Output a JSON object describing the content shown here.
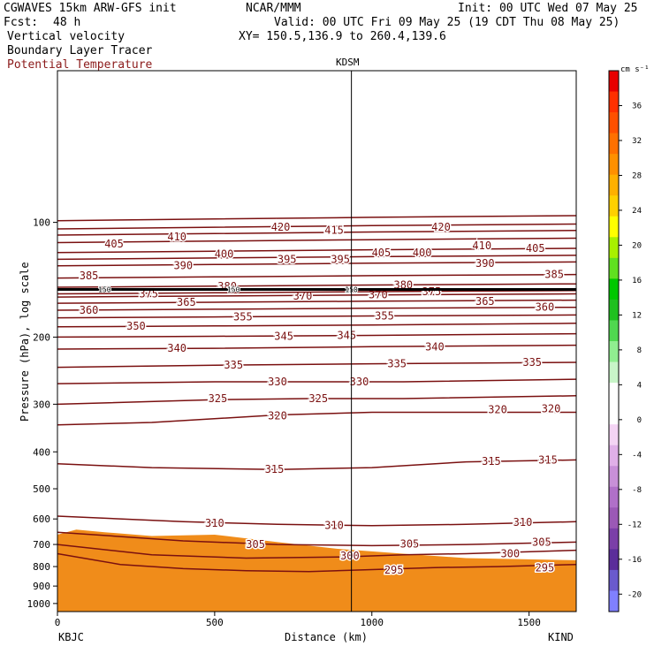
{
  "header": {
    "model": "CGWAVES 15km ARW-GFS init",
    "fcst_label": "Fcst:",
    "fcst_value": "48 h",
    "org": "NCAR/MMM",
    "init": "Init: 00 UTC Wed 07 May 25",
    "valid": "Valid: 00 UTC Fri 09 May 25 (19 CDT Thu 08 May 25)",
    "xy": "XY= 150.5,136.9 to 260.4,139.6",
    "fields": [
      {
        "label": "Vertical velocity",
        "color": "#000000"
      },
      {
        "label": "Boundary Layer Tracer",
        "color": "#000000"
      },
      {
        "label": "Potential Temperature",
        "color": "#8b1a1a"
      }
    ]
  },
  "chart_data": {
    "type": "heatmap",
    "subtype": "vertical cross-section",
    "xlabel": "Distance (km)",
    "ylabel": "Pressure (hPa), log scale",
    "xlim": [
      0,
      1650
    ],
    "ylim": [
      1050,
      40
    ],
    "yscale": "log",
    "x_ticks": [
      0,
      500,
      1000,
      1500
    ],
    "y_ticks": [
      100,
      200,
      300,
      400,
      500,
      600,
      700,
      800,
      900,
      1000
    ],
    "start_station": "KBJC",
    "end_station": "KIND",
    "mid_station": {
      "name": "KDSM",
      "x": 935
    },
    "tropopause_labels": [
      "150"
    ],
    "colorbar": {
      "unit": "cm s⁻¹",
      "ticks": [
        -20,
        -16,
        -12,
        -8,
        -4,
        0,
        4,
        8,
        12,
        16,
        20,
        24,
        28,
        32,
        36
      ],
      "colors": [
        "#8080ff",
        "#6a5acd",
        "#5b2d9a",
        "#7b3fa8",
        "#9b59b6",
        "#b070c8",
        "#c890d8",
        "#e0b0e8",
        "#f4d4f4",
        "#ffffff",
        "#ffffff",
        "#c8f5c8",
        "#90ee90",
        "#50d850",
        "#20c020",
        "#00c800",
        "#60e020",
        "#a8f000",
        "#ffff00",
        "#ffd000",
        "#ffb000",
        "#ff9000",
        "#ff7000",
        "#ff5000",
        "#ff3000",
        "#e80000"
      ]
    },
    "theta_contours": [
      {
        "value": 295,
        "points": [
          [
            0,
            740
          ],
          [
            200,
            790
          ],
          [
            400,
            810
          ],
          [
            600,
            820
          ],
          [
            800,
            825
          ],
          [
            1000,
            815
          ],
          [
            1200,
            805
          ],
          [
            1400,
            800
          ],
          [
            1650,
            790
          ]
        ],
        "labels": [
          [
            1070,
            818
          ],
          [
            1550,
            806
          ]
        ]
      },
      {
        "value": 300,
        "points": [
          [
            0,
            700
          ],
          [
            300,
            745
          ],
          [
            600,
            760
          ],
          [
            900,
            755
          ],
          [
            1100,
            745
          ],
          [
            1300,
            740
          ],
          [
            1650,
            725
          ]
        ],
        "labels": [
          [
            930,
            750
          ],
          [
            1440,
            740
          ]
        ]
      },
      {
        "value": 305,
        "points": [
          [
            0,
            650
          ],
          [
            400,
            685
          ],
          [
            700,
            700
          ],
          [
            1000,
            705
          ],
          [
            1300,
            700
          ],
          [
            1650,
            690
          ]
        ],
        "labels": [
          [
            630,
            700
          ],
          [
            1120,
            698
          ],
          [
            1540,
            690
          ]
        ]
      },
      {
        "value": 310,
        "points": [
          [
            0,
            590
          ],
          [
            400,
            610
          ],
          [
            700,
            620
          ],
          [
            1000,
            625
          ],
          [
            1300,
            620
          ],
          [
            1650,
            610
          ]
        ],
        "labels": [
          [
            500,
            615
          ],
          [
            880,
            624
          ],
          [
            1480,
            612
          ]
        ]
      },
      {
        "value": 315,
        "points": [
          [
            0,
            430
          ],
          [
            300,
            440
          ],
          [
            700,
            445
          ],
          [
            1000,
            440
          ],
          [
            1300,
            425
          ],
          [
            1650,
            420
          ]
        ],
        "labels": [
          [
            690,
            444
          ],
          [
            1380,
            424
          ],
          [
            1560,
            420
          ]
        ]
      },
      {
        "value": 320,
        "points": [
          [
            0,
            340
          ],
          [
            300,
            335
          ],
          [
            700,
            320
          ],
          [
            1000,
            315
          ],
          [
            1300,
            315
          ],
          [
            1650,
            315
          ]
        ],
        "labels": [
          [
            700,
            322
          ],
          [
            1400,
            310
          ],
          [
            1570,
            308
          ]
        ]
      },
      {
        "value": 325,
        "points": [
          [
            0,
            300
          ],
          [
            500,
            292
          ],
          [
            800,
            290
          ],
          [
            1100,
            290
          ],
          [
            1650,
            285
          ]
        ],
        "labels": [
          [
            510,
            290
          ],
          [
            830,
            290
          ]
        ]
      },
      {
        "value": 330,
        "points": [
          [
            0,
            265
          ],
          [
            500,
            262
          ],
          [
            800,
            262
          ],
          [
            1100,
            262
          ],
          [
            1650,
            258
          ]
        ],
        "labels": [
          [
            700,
            262
          ],
          [
            960,
            262
          ]
        ]
      },
      {
        "value": 335,
        "points": [
          [
            0,
            240
          ],
          [
            500,
            237
          ],
          [
            1000,
            235
          ],
          [
            1650,
            233
          ]
        ],
        "labels": [
          [
            560,
            237
          ],
          [
            1080,
            235
          ],
          [
            1510,
            233
          ]
        ]
      },
      {
        "value": 340,
        "points": [
          [
            0,
            215
          ],
          [
            500,
            214
          ],
          [
            1000,
            212
          ],
          [
            1650,
            210
          ]
        ],
        "labels": [
          [
            380,
            214
          ],
          [
            1200,
            212
          ]
        ]
      },
      {
        "value": 345,
        "points": [
          [
            0,
            200
          ],
          [
            500,
            199
          ],
          [
            1000,
            198
          ],
          [
            1650,
            196
          ]
        ],
        "labels": [
          [
            720,
            199
          ],
          [
            920,
            198
          ]
        ]
      },
      {
        "value": 350,
        "points": [
          [
            0,
            188
          ],
          [
            500,
            187
          ],
          [
            1000,
            186
          ],
          [
            1650,
            184
          ]
        ],
        "labels": [
          [
            250,
            187
          ]
        ]
      },
      {
        "value": 355,
        "points": [
          [
            0,
            178
          ],
          [
            500,
            177
          ],
          [
            1000,
            176
          ],
          [
            1650,
            175
          ]
        ],
        "labels": [
          [
            590,
            177
          ],
          [
            1040,
            176
          ]
        ]
      },
      {
        "value": 360,
        "points": [
          [
            0,
            170
          ],
          [
            500,
            169
          ],
          [
            1000,
            168
          ],
          [
            1650,
            167
          ]
        ],
        "labels": [
          [
            100,
            170
          ],
          [
            1550,
            167
          ]
        ]
      },
      {
        "value": 365,
        "points": [
          [
            0,
            163
          ],
          [
            500,
            162
          ],
          [
            1000,
            161
          ],
          [
            1650,
            160
          ]
        ],
        "labels": [
          [
            410,
            162
          ],
          [
            1360,
            161
          ]
        ]
      },
      {
        "value": 370,
        "points": [
          [
            0,
            157
          ],
          [
            500,
            156
          ],
          [
            1000,
            155
          ],
          [
            1650,
            154
          ]
        ],
        "labels": [
          [
            780,
            156
          ],
          [
            1020,
            155
          ]
        ]
      },
      {
        "value": 375,
        "points": [
          [
            0,
            154
          ],
          [
            500,
            153
          ],
          [
            1000,
            152
          ],
          [
            1650,
            151
          ]
        ],
        "labels": [
          [
            290,
            154
          ],
          [
            1190,
            152
          ]
        ]
      },
      {
        "value": 380,
        "points": [
          [
            0,
            148
          ],
          [
            500,
            147
          ],
          [
            1000,
            146
          ],
          [
            1650,
            145
          ]
        ],
        "labels": [
          [
            540,
            147
          ],
          [
            1100,
            146
          ]
        ]
      },
      {
        "value": 385,
        "points": [
          [
            0,
            140
          ],
          [
            500,
            139
          ],
          [
            1000,
            138
          ],
          [
            1650,
            137
          ]
        ],
        "labels": [
          [
            100,
            138
          ],
          [
            1580,
            137
          ]
        ]
      },
      {
        "value": 390,
        "points": [
          [
            0,
            130
          ],
          [
            500,
            129
          ],
          [
            1000,
            128
          ],
          [
            1650,
            127
          ]
        ],
        "labels": [
          [
            400,
            130
          ],
          [
            1360,
            128
          ]
        ]
      },
      {
        "value": 395,
        "points": [
          [
            0,
            125
          ],
          [
            500,
            124
          ],
          [
            1000,
            123
          ],
          [
            1650,
            122
          ]
        ],
        "labels": [
          [
            730,
            125
          ],
          [
            900,
            125
          ]
        ]
      },
      {
        "value": 400,
        "points": [
          [
            0,
            120
          ],
          [
            500,
            119
          ],
          [
            1000,
            118
          ],
          [
            1650,
            117
          ]
        ],
        "labels": [
          [
            530,
            121
          ],
          [
            1160,
            120
          ]
        ]
      },
      {
        "value": 405,
        "points": [
          [
            0,
            113
          ],
          [
            500,
            112
          ],
          [
            1000,
            111
          ],
          [
            1650,
            110
          ]
        ],
        "labels": [
          [
            180,
            114
          ],
          [
            1030,
            120
          ],
          [
            1520,
            117
          ]
        ]
      },
      {
        "value": 410,
        "points": [
          [
            0,
            108
          ],
          [
            500,
            107
          ],
          [
            1000,
            106
          ],
          [
            1650,
            105
          ]
        ],
        "labels": [
          [
            380,
            109
          ],
          [
            1350,
            115
          ]
        ]
      },
      {
        "value": 415,
        "points": [
          [
            0,
            104
          ],
          [
            500,
            103
          ],
          [
            1000,
            102
          ],
          [
            1650,
            101
          ]
        ],
        "labels": [
          [
            880,
            105
          ]
        ]
      },
      {
        "value": 420,
        "points": [
          [
            0,
            99
          ],
          [
            500,
            98
          ],
          [
            1000,
            97
          ],
          [
            1650,
            96
          ]
        ],
        "labels": [
          [
            710,
            103
          ],
          [
            1220,
            103
          ]
        ]
      }
    ],
    "tracer_regions": [
      {
        "color": "#f08c1a",
        "points": [
          [
            0,
            660
          ],
          [
            60,
            640
          ],
          [
            150,
            650
          ],
          [
            300,
            665
          ],
          [
            500,
            660
          ],
          [
            700,
            690
          ],
          [
            900,
            720
          ],
          [
            1100,
            740
          ],
          [
            1300,
            760
          ],
          [
            1650,
            770
          ],
          [
            1650,
            1050
          ],
          [
            0,
            1050
          ]
        ]
      }
    ]
  }
}
